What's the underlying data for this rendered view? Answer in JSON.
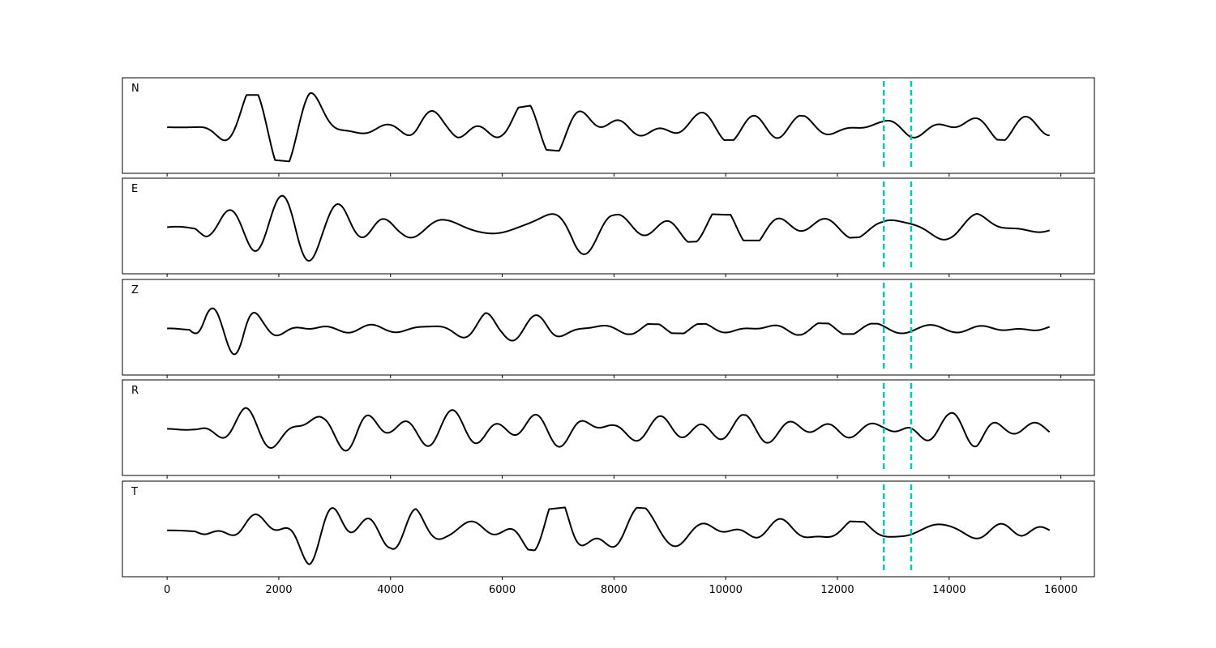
{
  "chart_data": {
    "type": "line",
    "xlim": [
      -800,
      16600
    ],
    "xticks": [
      0,
      2000,
      4000,
      6000,
      8000,
      10000,
      12000,
      14000,
      16000
    ],
    "x_start": 0,
    "x_end": 15800,
    "grid": false,
    "legend": "none",
    "trace_color": "#000000",
    "marker_color": "#00c5b5",
    "markers": [
      12830,
      13320
    ],
    "panels": [
      {
        "label": "N",
        "envelope": [
          [
            0,
            0.03
          ],
          [
            500,
            0.05
          ],
          [
            700,
            0.3
          ],
          [
            1000,
            0.55
          ],
          [
            1400,
            0.75
          ],
          [
            1800,
            0.75
          ],
          [
            2200,
            0.8
          ],
          [
            2550,
            1.0
          ],
          [
            3000,
            0.8
          ],
          [
            3500,
            0.6
          ],
          [
            4000,
            0.55
          ],
          [
            4500,
            0.85
          ],
          [
            5000,
            0.5
          ],
          [
            5200,
            0.6
          ],
          [
            6000,
            0.4
          ],
          [
            6500,
            0.5
          ],
          [
            7000,
            0.55
          ],
          [
            7500,
            0.6
          ],
          [
            8200,
            0.65
          ],
          [
            8800,
            0.5
          ],
          [
            9500,
            0.35
          ],
          [
            10000,
            0.3
          ],
          [
            11000,
            0.3
          ],
          [
            12000,
            0.2
          ],
          [
            12800,
            0.15
          ],
          [
            13300,
            0.25
          ],
          [
            14000,
            0.25
          ],
          [
            15000,
            0.3
          ],
          [
            15800,
            0.2
          ]
        ]
      },
      {
        "label": "E",
        "envelope": [
          [
            0,
            0.03
          ],
          [
            500,
            0.05
          ],
          [
            700,
            0.3
          ],
          [
            1000,
            0.5
          ],
          [
            1500,
            0.7
          ],
          [
            2000,
            0.8
          ],
          [
            2300,
            0.9
          ],
          [
            2800,
            0.75
          ],
          [
            3200,
            0.9
          ],
          [
            3700,
            0.85
          ],
          [
            4200,
            0.45
          ],
          [
            5000,
            0.35
          ],
          [
            6000,
            0.45
          ],
          [
            6500,
            0.55
          ],
          [
            7300,
            0.75
          ],
          [
            8000,
            0.3
          ],
          [
            9000,
            0.35
          ],
          [
            10000,
            0.3
          ],
          [
            11000,
            0.3
          ],
          [
            12000,
            0.25
          ],
          [
            12800,
            0.2
          ],
          [
            13300,
            0.35
          ],
          [
            14000,
            0.35
          ],
          [
            14500,
            0.45
          ],
          [
            15000,
            0.25
          ],
          [
            15800,
            0.15
          ]
        ]
      },
      {
        "label": "Z",
        "envelope": [
          [
            0,
            0.01
          ],
          [
            400,
            0.02
          ],
          [
            500,
            0.15
          ],
          [
            700,
            0.5
          ],
          [
            1000,
            0.7
          ],
          [
            1350,
            1.0
          ],
          [
            1700,
            0.6
          ],
          [
            2200,
            0.45
          ],
          [
            3000,
            0.25
          ],
          [
            4000,
            0.2
          ],
          [
            5000,
            0.3
          ],
          [
            5700,
            0.45
          ],
          [
            6000,
            0.25
          ],
          [
            6800,
            0.4
          ],
          [
            7500,
            0.15
          ],
          [
            9000,
            0.1
          ],
          [
            11000,
            0.15
          ],
          [
            12000,
            0.12
          ],
          [
            13000,
            0.12
          ],
          [
            14000,
            0.1
          ],
          [
            15000,
            0.12
          ],
          [
            15800,
            0.1
          ]
        ]
      },
      {
        "label": "R",
        "envelope": [
          [
            0,
            0.02
          ],
          [
            500,
            0.05
          ],
          [
            700,
            0.3
          ],
          [
            1000,
            0.5
          ],
          [
            1400,
            0.75
          ],
          [
            1800,
            0.8
          ],
          [
            2300,
            0.9
          ],
          [
            2800,
            0.65
          ],
          [
            3400,
            0.85
          ],
          [
            4000,
            0.5
          ],
          [
            5000,
            0.45
          ],
          [
            6000,
            0.45
          ],
          [
            6500,
            0.55
          ],
          [
            7300,
            0.6
          ],
          [
            8000,
            0.35
          ],
          [
            9000,
            0.4
          ],
          [
            10000,
            0.35
          ],
          [
            11000,
            0.3
          ],
          [
            12000,
            0.3
          ],
          [
            12800,
            0.2
          ],
          [
            13300,
            0.45
          ],
          [
            14000,
            0.4
          ],
          [
            14500,
            0.5
          ],
          [
            15000,
            0.25
          ],
          [
            15800,
            0.15
          ]
        ]
      },
      {
        "label": "T",
        "envelope": [
          [
            0,
            0.02
          ],
          [
            500,
            0.05
          ],
          [
            700,
            0.3
          ],
          [
            1000,
            0.5
          ],
          [
            1400,
            0.7
          ],
          [
            1800,
            0.7
          ],
          [
            2200,
            0.75
          ],
          [
            2550,
            0.95
          ],
          [
            3000,
            0.8
          ],
          [
            3500,
            0.6
          ],
          [
            4000,
            0.5
          ],
          [
            4450,
            0.95
          ],
          [
            5000,
            0.45
          ],
          [
            6000,
            0.35
          ],
          [
            6500,
            0.45
          ],
          [
            7200,
            0.55
          ],
          [
            7500,
            0.5
          ],
          [
            8200,
            0.55
          ],
          [
            8800,
            0.5
          ],
          [
            9500,
            0.3
          ],
          [
            10500,
            0.3
          ],
          [
            11500,
            0.25
          ],
          [
            12500,
            0.2
          ],
          [
            13000,
            0.2
          ],
          [
            13500,
            0.15
          ],
          [
            14500,
            0.2
          ],
          [
            15300,
            0.25
          ],
          [
            15800,
            0.15
          ]
        ]
      }
    ]
  }
}
